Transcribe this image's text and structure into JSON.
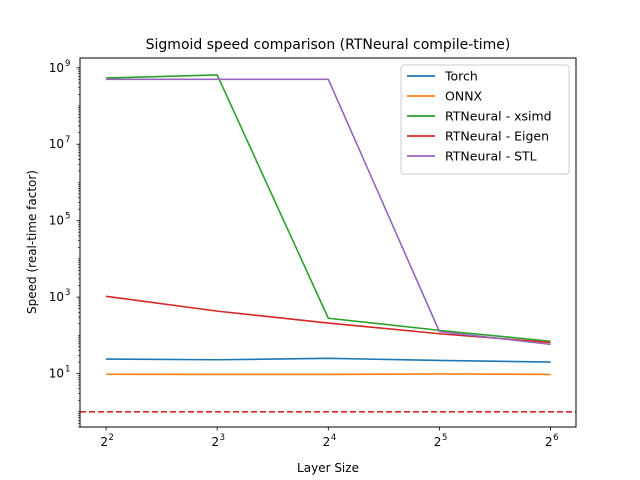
{
  "chart_data": {
    "type": "line",
    "title": "Sigmoid speed comparison (RTNeural compile-time)",
    "xlabel": "Layer Size",
    "ylabel": "Speed (real-time factor)",
    "x_scale": "log2",
    "y_scale": "log10",
    "x": [
      4,
      8,
      16,
      32,
      64
    ],
    "xticks": [
      {
        "value": 4,
        "base": "2",
        "exp": "2"
      },
      {
        "value": 8,
        "base": "2",
        "exp": "3"
      },
      {
        "value": 16,
        "base": "2",
        "exp": "4"
      },
      {
        "value": 32,
        "base": "2",
        "exp": "5"
      },
      {
        "value": 64,
        "base": "2",
        "exp": "6"
      }
    ],
    "yticks": [
      {
        "value": 10,
        "base": "10",
        "exp": "1"
      },
      {
        "value": 1000,
        "base": "10",
        "exp": "3"
      },
      {
        "value": 100000,
        "base": "10",
        "exp": "5"
      },
      {
        "value": 10000000,
        "base": "10",
        "exp": "7"
      },
      {
        "value": 1000000000,
        "base": "10",
        "exp": "9"
      }
    ],
    "xlim": [
      3.4,
      75
    ],
    "ylim": [
      0.4,
      1800000000
    ],
    "grid": false,
    "legend_position": "top-right",
    "series": [
      {
        "name": "Torch",
        "color": "#1f77b4",
        "values": [
          24,
          23,
          25,
          22,
          20
        ]
      },
      {
        "name": "ONNX",
        "color": "#ff7f0e",
        "values": [
          9.6,
          9.5,
          9.5,
          9.8,
          9.5
        ]
      },
      {
        "name": "RTNeural - xsimd",
        "color": "#2ca02c",
        "values": [
          540000000,
          650000000,
          280,
          135,
          70
        ]
      },
      {
        "name": "RTNeural - Eigen",
        "color": "#d62728",
        "values": [
          1050,
          430,
          210,
          110,
          65
        ]
      },
      {
        "name": "RTNeural - STL",
        "color": "#9467bd",
        "values": [
          500000000,
          500000000,
          500000000,
          125,
          58
        ]
      }
    ],
    "reference_line": {
      "y": 1,
      "color": "#d62728",
      "style": "dashed"
    }
  }
}
